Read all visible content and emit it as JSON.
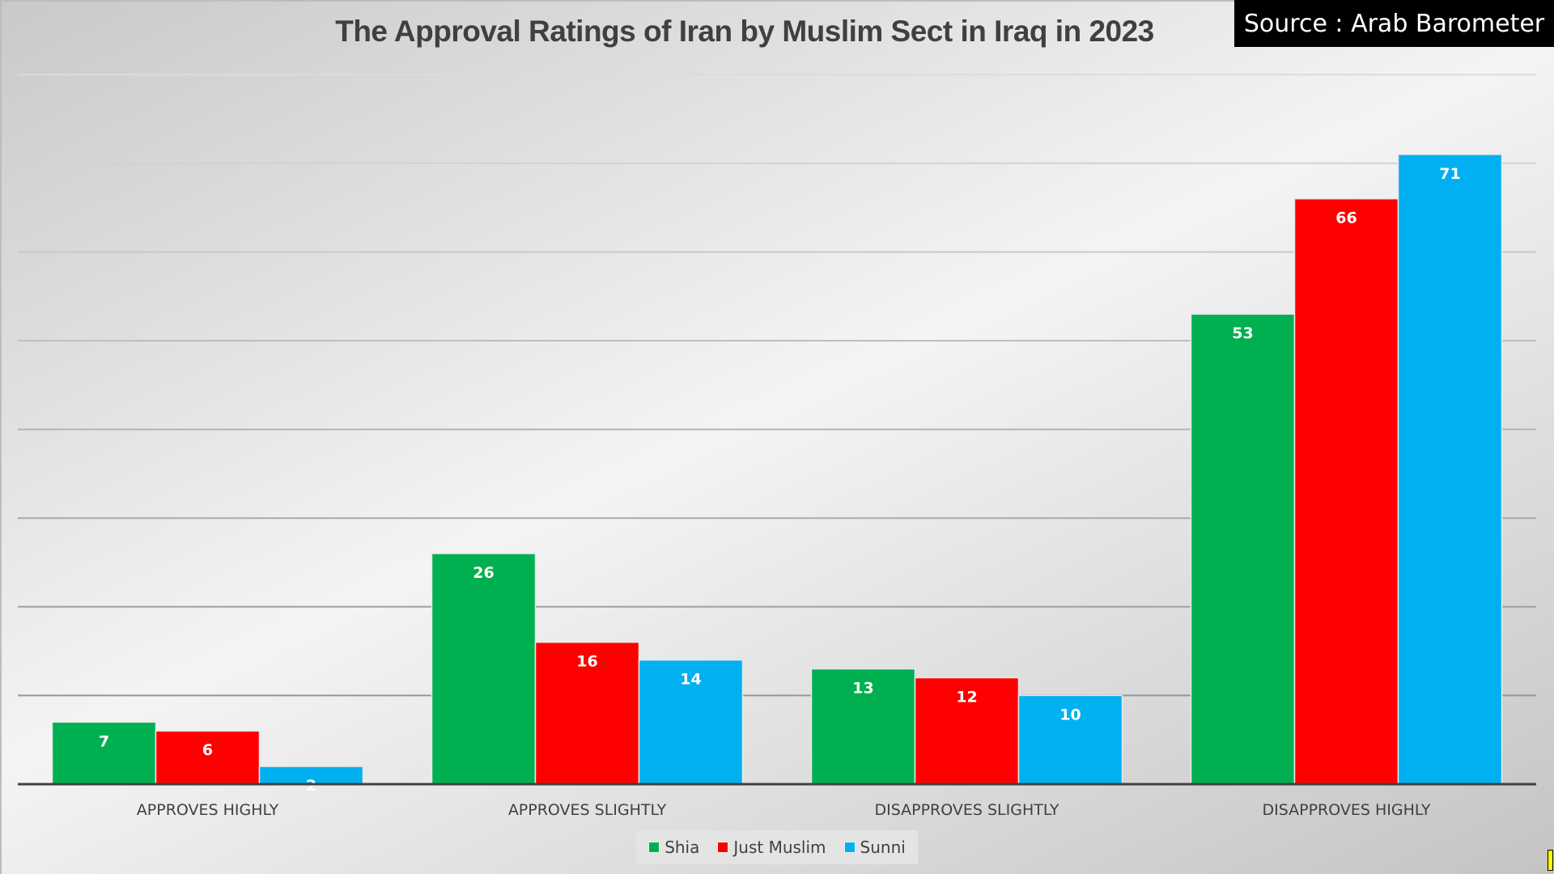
{
  "header": {
    "title": "The Approval Ratings of Iran by Muslim Sect in Iraq in 2023",
    "source": "Source : Arab Barometer"
  },
  "chart_data": {
    "type": "bar",
    "title": "The Approval Ratings of Iran by Muslim Sect in Iraq in 2023",
    "xlabel": "",
    "ylabel": "",
    "ylim": [
      0,
      80
    ],
    "grid": true,
    "gridlines": [
      10,
      20,
      30,
      40,
      50,
      60,
      70,
      80
    ],
    "legend_position": "bottom",
    "categories": [
      "APPROVES HIGHLY",
      "APPROVES SLIGHTLY",
      "DISAPPROVES SLIGHTLY",
      "DISAPPROVES HIGHLY"
    ],
    "series": [
      {
        "name": "Shia",
        "color": "#00b050",
        "values": [
          7,
          26,
          13,
          53
        ]
      },
      {
        "name": "Just Muslim",
        "color": "#ff0000",
        "values": [
          6,
          16,
          12,
          66
        ]
      },
      {
        "name": "Sunni",
        "color": "#00b0f0",
        "values": [
          2,
          14,
          10,
          71
        ]
      }
    ]
  }
}
